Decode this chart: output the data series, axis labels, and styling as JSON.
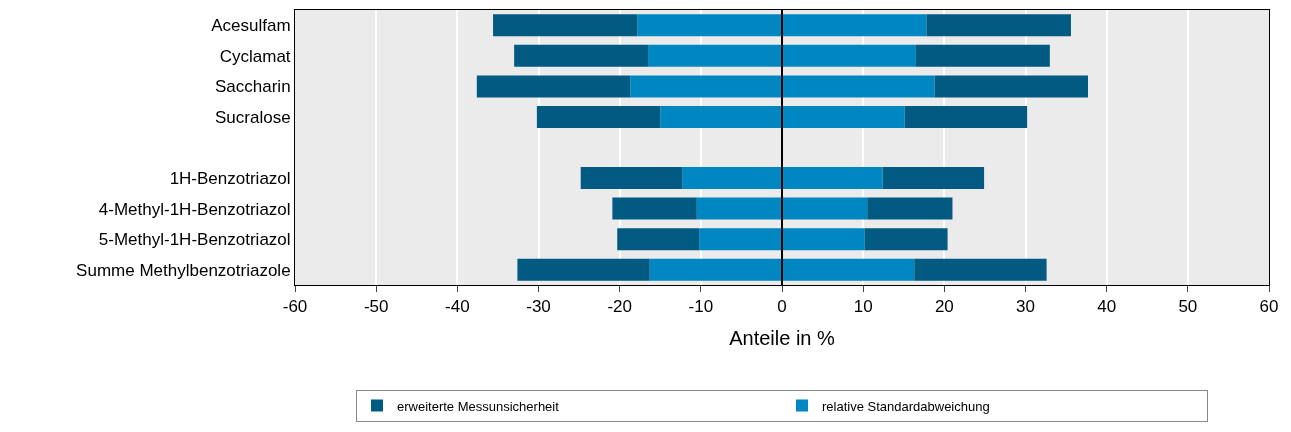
{
  "chart_data": {
    "type": "bar",
    "orientation": "horizontal",
    "stacked": true,
    "categories": [
      "Acesulfam",
      "Cyclamat",
      "Saccharin",
      "Sucralose",
      null,
      "1H-Benzotriazol",
      "4-Methyl-1H-Benzotriazol",
      "5-Methyl-1H-Benzotriazol",
      "Summe Methylbenzotriazole"
    ],
    "series": [
      {
        "name": "relative Standardabweichung",
        "color": "#0086c0",
        "values": [
          17.8,
          16.5,
          18.8,
          15.1,
          null,
          12.4,
          10.5,
          10.2,
          16.3
        ]
      },
      {
        "name": "erweiterte Messunsicherheit",
        "color": "#005a82",
        "values": [
          17.8,
          16.5,
          18.9,
          15.1,
          null,
          12.5,
          10.5,
          10.2,
          16.3
        ]
      },
      {
        "color": "#0086c0",
        "values": [
          -17.8,
          -16.5,
          -18.7,
          -15.0,
          null,
          -12.3,
          -10.5,
          -10.2,
          -16.3
        ]
      },
      {
        "color": "#005a82",
        "values": [
          -17.8,
          -16.5,
          -18.9,
          -15.2,
          null,
          -12.5,
          -10.4,
          -10.1,
          -16.3
        ]
      }
    ],
    "xlabel": "Anteile in %",
    "xlim": [
      -60,
      60
    ],
    "xticks": [
      -60,
      -50,
      -40,
      -30,
      -20,
      -10,
      0,
      10,
      20,
      30,
      40,
      50,
      60
    ],
    "ref_lines": [
      {
        "axis": "x",
        "value": 0,
        "color": "#000000"
      }
    ],
    "grid": "x",
    "legend": "bottom"
  }
}
